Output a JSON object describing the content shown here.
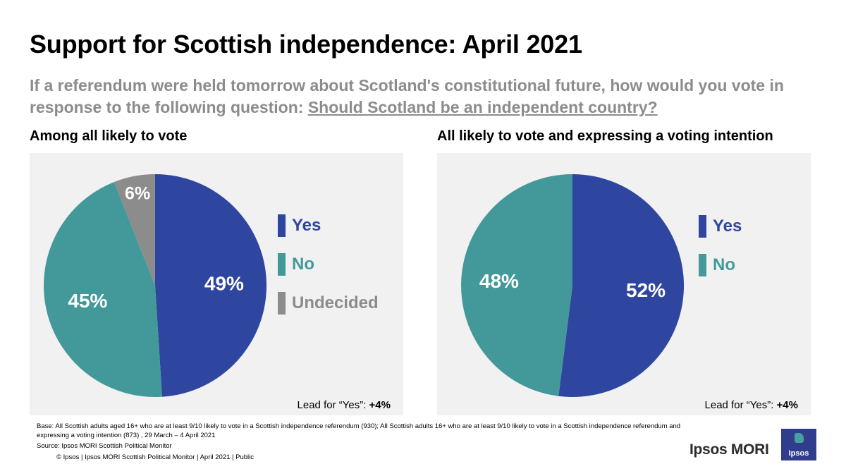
{
  "header": {
    "title": "Support for Scottish independence: April 2021",
    "question_text": "If a referendum were held tomorrow about Scotland's constitutional future, how would you vote in response to the following question: ",
    "question_underlined": "Should Scotland be an independent country?"
  },
  "colors": {
    "yes": "#2f46a0",
    "no": "#43999a",
    "undecided": "#8c8c8c",
    "panel": "#f1f1f1"
  },
  "chart_data": [
    {
      "type": "pie",
      "title": "Among all likely to vote",
      "categories": [
        "Yes",
        "No",
        "Undecided"
      ],
      "values": [
        49,
        45,
        6
      ],
      "labels": [
        "49%",
        "45%",
        "6%"
      ],
      "colors": [
        "#2f46a0",
        "#43999a",
        "#8c8c8c"
      ],
      "legend": [
        "Yes",
        "No",
        "Undecided"
      ],
      "legend_position": "right",
      "lead_label": "Lead for “Yes”:",
      "lead_value": "+4%"
    },
    {
      "type": "pie",
      "title": "All likely to vote and expressing a voting intention",
      "categories": [
        "Yes",
        "No"
      ],
      "values": [
        52,
        48
      ],
      "labels": [
        "52%",
        "48%"
      ],
      "colors": [
        "#2f46a0",
        "#43999a"
      ],
      "legend": [
        "Yes",
        "No"
      ],
      "legend_position": "right",
      "lead_label": "Lead for “Yes”:",
      "lead_value": "+4%"
    }
  ],
  "footer": {
    "base": "Base: All Scottish adults aged 16+ who are at least 9/10 likely to vote in a Scottish independence referendum (930); All Scottish adults 16+ who are at least 9/10 likely to vote in a Scottish independence referendum and expressing a voting intention (873) , 29 March – 4 April 2021",
    "source": "Source: Ipsos MORI Scottish Political Monitor",
    "copyright": "© Ipsos | Ipsos MORI Scottish Political Monitor | April  2021 | Public",
    "brand": "Ipsos MORI",
    "logo_text": "Ipsos"
  }
}
